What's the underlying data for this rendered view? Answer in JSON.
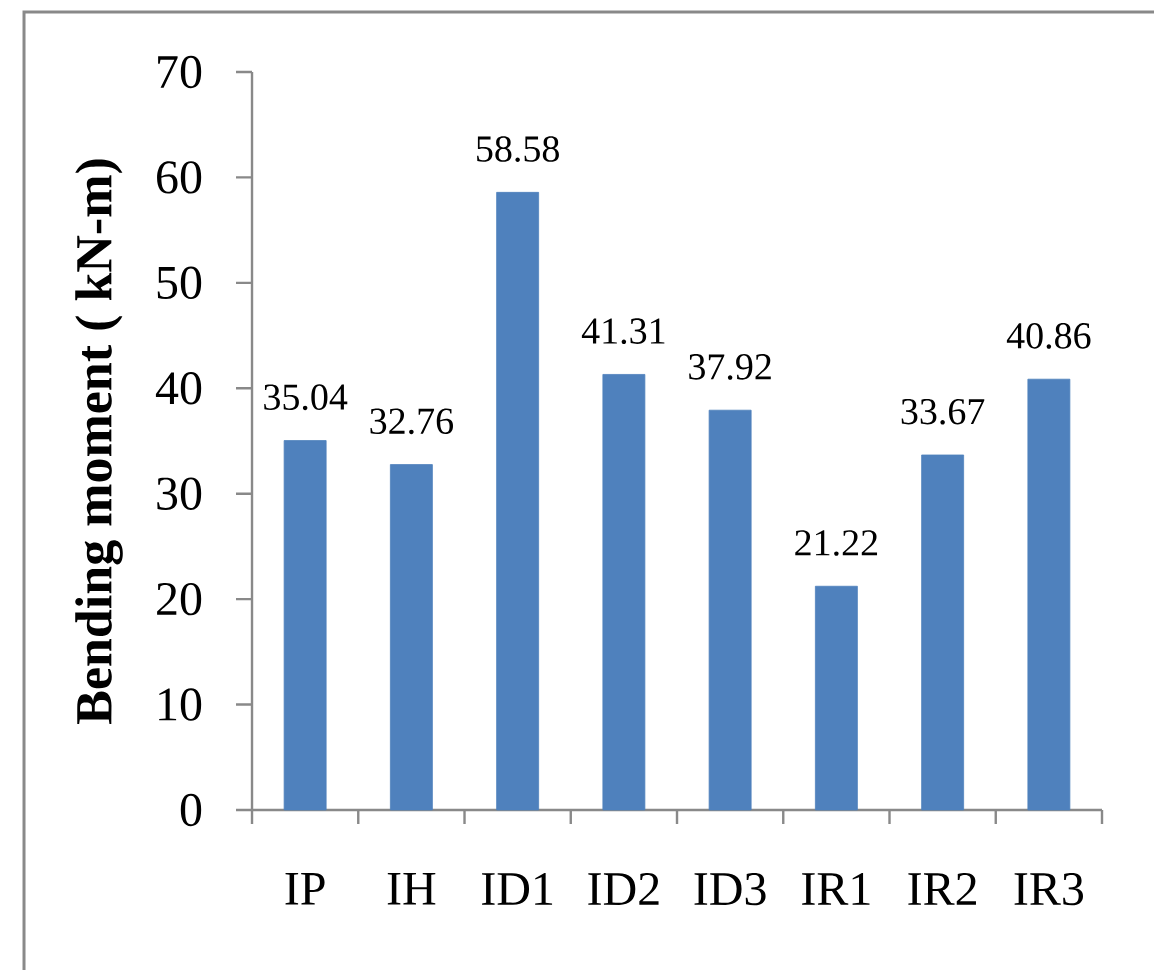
{
  "chart_data": {
    "type": "bar",
    "ylabel": "Bending moment ( kN-m)",
    "categories": [
      "IP",
      "IH",
      "ID1",
      "ID2",
      "ID3",
      "IR1",
      "IR2",
      "IR3"
    ],
    "values": [
      35.04,
      32.76,
      58.58,
      41.31,
      37.92,
      21.22,
      33.67,
      40.86
    ],
    "color": "#4f81bd",
    "ylim": [
      0,
      70
    ],
    "yticks": [
      0,
      10,
      20,
      30,
      40,
      50,
      60,
      70
    ],
    "data_labels": true
  }
}
